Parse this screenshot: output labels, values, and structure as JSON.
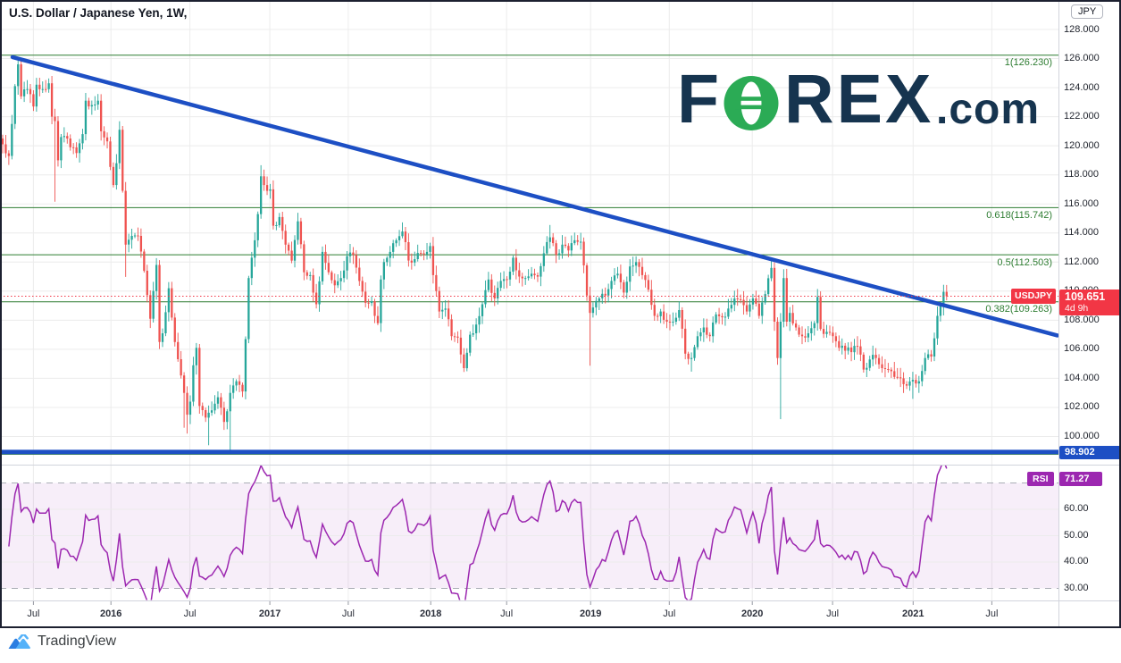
{
  "header": {
    "title": "U.S. Dollar / Japanese Yen, 1W,"
  },
  "price_scale": {
    "currency_badge": "JPY",
    "current": {
      "price": "109.651",
      "countdown": "4d 9h"
    },
    "ray_badge": "98.902"
  },
  "symbol_price_label": "USDJPY",
  "rsi_panel": {
    "label": "RSI",
    "value": "71.27"
  },
  "watermark": {
    "f": "F",
    "rex": "REX",
    "tld": ".com",
    "navy": "#16344f",
    "green": "#2bab55"
  },
  "footer": {
    "brand": "TradingView"
  },
  "colors": {
    "up": "#26a69a",
    "down": "#ef5350",
    "trend": "#1d4fc4",
    "fib": "#2e7d32",
    "grid": "#ececec",
    "price_line": "#f23645",
    "badge_red": "#f23645",
    "badge_blue": "#1d4fc4",
    "rsi": "#9c27b0",
    "band_fill": "#9c27b0",
    "dashed": "#aaadb5",
    "axis_text": "#22262f",
    "tick": "#9598a1",
    "divider": "#d1d4dc"
  },
  "chart_data": {
    "type": "candlestick",
    "symbol": "USD/JPY",
    "timeframe": "1W",
    "title": "U.S. Dollar / Japanese Yen, 1W",
    "last_price": 109.651,
    "last_candle_countdown": "4d 9h",
    "weeks": 308,
    "price_axis": {
      "min": 98.0,
      "max": 128.8,
      "tick_step": 2,
      "ticks": [
        128,
        126,
        124,
        122,
        120,
        118,
        116,
        114,
        112,
        110,
        108,
        106,
        104,
        102,
        100
      ]
    },
    "time_axis": {
      "week0_date": "2015-04-27",
      "labels": [
        {
          "label": "Jul",
          "week": 10.0
        },
        {
          "label": "2016",
          "week": 35.2
        },
        {
          "label": "Jul",
          "week": 60.9
        },
        {
          "label": "2017",
          "week": 86.9
        },
        {
          "label": "Jul",
          "week": 112.4
        },
        {
          "label": "2018",
          "week": 139.2
        },
        {
          "label": "Jul",
          "week": 163.9
        },
        {
          "label": "2019",
          "week": 191.2
        },
        {
          "label": "Jul",
          "week": 216.8
        },
        {
          "label": "2020",
          "week": 243.8
        },
        {
          "label": "Jul",
          "week": 269.9
        },
        {
          "label": "2021",
          "week": 296.1
        },
        {
          "label": "Jul",
          "week": 321.7
        }
      ]
    },
    "weekly_close_keypoints": [
      [
        0,
        120.1
      ],
      [
        2,
        119.3
      ],
      [
        3,
        121.5
      ],
      [
        4,
        124.1
      ],
      [
        5,
        125.6
      ],
      [
        6,
        123.4
      ],
      [
        8,
        123.9
      ],
      [
        10,
        122.7
      ],
      [
        11,
        124.2
      ],
      [
        13,
        123.9
      ],
      [
        15,
        124.3
      ],
      [
        16,
        122.0
      ],
      [
        17,
        121.7
      ],
      [
        18,
        119.0
      ],
      [
        19,
        120.6
      ],
      [
        21,
        120.5
      ],
      [
        22,
        119.9
      ],
      [
        24,
        119.5
      ],
      [
        26,
        120.8
      ],
      [
        27,
        123.1
      ],
      [
        29,
        122.8
      ],
      [
        31,
        123.1
      ],
      [
        32,
        121.0
      ],
      [
        34,
        120.3
      ],
      [
        36,
        117.3
      ],
      [
        37,
        118.8
      ],
      [
        38,
        121.1
      ],
      [
        39,
        116.9
      ],
      [
        40,
        113.2
      ],
      [
        42,
        113.8
      ],
      [
        44,
        113.8
      ],
      [
        46,
        111.4
      ],
      [
        48,
        108.1
      ],
      [
        50,
        111.8
      ],
      [
        51,
        106.5
      ],
      [
        52,
        107.1
      ],
      [
        54,
        110.2
      ],
      [
        56,
        106.5
      ],
      [
        58,
        104.2
      ],
      [
        59,
        103.0
      ],
      [
        60,
        101.5
      ],
      [
        61,
        102.4
      ],
      [
        62,
        104.9
      ],
      [
        63,
        106.1
      ],
      [
        64,
        102.1
      ],
      [
        66,
        101.3
      ],
      [
        68,
        101.8
      ],
      [
        70,
        102.7
      ],
      [
        72,
        101.0
      ],
      [
        74,
        103.0
      ],
      [
        76,
        103.8
      ],
      [
        78,
        103.1
      ],
      [
        79,
        106.7
      ],
      [
        80,
        110.9
      ],
      [
        81,
        112.3
      ],
      [
        82,
        113.5
      ],
      [
        83,
        115.3
      ],
      [
        84,
        117.9
      ],
      [
        85,
        117.3
      ],
      [
        86,
        116.9
      ],
      [
        87,
        117.0
      ],
      [
        88,
        114.5
      ],
      [
        90,
        115.1
      ],
      [
        92,
        113.2
      ],
      [
        94,
        112.1
      ],
      [
        96,
        114.8
      ],
      [
        98,
        111.3
      ],
      [
        100,
        111.1
      ],
      [
        102,
        109.1
      ],
      [
        104,
        112.7
      ],
      [
        106,
        111.3
      ],
      [
        108,
        110.4
      ],
      [
        110,
        110.9
      ],
      [
        112,
        112.4
      ],
      [
        114,
        112.5
      ],
      [
        116,
        110.7
      ],
      [
        118,
        109.2
      ],
      [
        120,
        109.3
      ],
      [
        122,
        107.8
      ],
      [
        123,
        110.8
      ],
      [
        124,
        112.0
      ],
      [
        126,
        112.7
      ],
      [
        128,
        113.5
      ],
      [
        130,
        114.1
      ],
      [
        132,
        112.1
      ],
      [
        134,
        112.2
      ],
      [
        136,
        112.6
      ],
      [
        138,
        112.7
      ],
      [
        139,
        113.1
      ],
      [
        140,
        111.1
      ],
      [
        142,
        108.6
      ],
      [
        144,
        108.8
      ],
      [
        146,
        106.9
      ],
      [
        148,
        106.8
      ],
      [
        150,
        104.7
      ],
      [
        152,
        107.0
      ],
      [
        154,
        107.7
      ],
      [
        156,
        109.1
      ],
      [
        158,
        110.8
      ],
      [
        160,
        109.5
      ],
      [
        162,
        110.7
      ],
      [
        164,
        110.8
      ],
      [
        166,
        112.3
      ],
      [
        168,
        111.0
      ],
      [
        170,
        110.9
      ],
      [
        172,
        111.2
      ],
      [
        174,
        111.0
      ],
      [
        176,
        112.6
      ],
      [
        178,
        113.7
      ],
      [
        180,
        112.5
      ],
      [
        182,
        113.2
      ],
      [
        184,
        112.8
      ],
      [
        186,
        113.5
      ],
      [
        188,
        113.4
      ],
      [
        190,
        109.7
      ],
      [
        191,
        108.5
      ],
      [
        194,
        109.5
      ],
      [
        196,
        109.7
      ],
      [
        198,
        110.7
      ],
      [
        200,
        111.2
      ],
      [
        202,
        109.9
      ],
      [
        204,
        111.7
      ],
      [
        206,
        112.0
      ],
      [
        208,
        111.1
      ],
      [
        210,
        110.1
      ],
      [
        212,
        108.3
      ],
      [
        214,
        108.6
      ],
      [
        216,
        107.9
      ],
      [
        218,
        107.9
      ],
      [
        220,
        108.7
      ],
      [
        222,
        105.7
      ],
      [
        224,
        105.4
      ],
      [
        226,
        106.9
      ],
      [
        228,
        107.5
      ],
      [
        230,
        106.9
      ],
      [
        232,
        108.4
      ],
      [
        234,
        108.2
      ],
      [
        236,
        108.8
      ],
      [
        238,
        109.5
      ],
      [
        240,
        109.4
      ],
      [
        242,
        108.6
      ],
      [
        244,
        109.5
      ],
      [
        246,
        108.3
      ],
      [
        248,
        109.8
      ],
      [
        250,
        111.6
      ],
      [
        251,
        107.9
      ],
      [
        252,
        105.4
      ],
      [
        253,
        107.9
      ],
      [
        254,
        110.9
      ],
      [
        255,
        107.9
      ],
      [
        256,
        108.5
      ],
      [
        258,
        107.5
      ],
      [
        260,
        106.9
      ],
      [
        262,
        107.1
      ],
      [
        264,
        107.8
      ],
      [
        265,
        109.6
      ],
      [
        266,
        107.4
      ],
      [
        268,
        107.2
      ],
      [
        270,
        106.9
      ],
      [
        272,
        106.1
      ],
      [
        274,
        105.9
      ],
      [
        276,
        105.8
      ],
      [
        278,
        106.2
      ],
      [
        280,
        104.6
      ],
      [
        282,
        105.3
      ],
      [
        284,
        105.4
      ],
      [
        286,
        104.7
      ],
      [
        288,
        104.6
      ],
      [
        290,
        104.1
      ],
      [
        292,
        104.0
      ],
      [
        294,
        103.5
      ],
      [
        296,
        103.9
      ],
      [
        298,
        103.8
      ],
      [
        300,
        105.4
      ],
      [
        302,
        105.5
      ],
      [
        304,
        108.3
      ],
      [
        305,
        109.0
      ],
      [
        306,
        109.95
      ],
      [
        307,
        109.651
      ]
    ],
    "wick_low_overrides": {
      "17": 116.15,
      "40": 110.98,
      "59": 100.6,
      "60": 100.2,
      "67": 99.4,
      "74": 98.82,
      "150": 104.56,
      "191": 104.87,
      "224": 104.46,
      "253": 101.19,
      "296": 102.59
    },
    "wick_high_overrides": {
      "5": 125.86,
      "38": 121.69,
      "84": 118.66,
      "130": 114.73,
      "178": 114.55,
      "206": 112.4,
      "250": 112.23,
      "254": 111.51
    },
    "fib_retracement": {
      "levels": [
        {
          "ratio": 1,
          "price": 126.23,
          "label": "1(126.230)"
        },
        {
          "ratio": 0.618,
          "price": 115.742,
          "label": "0.618(115.742)"
        },
        {
          "ratio": 0.5,
          "price": 112.503,
          "label": "0.5(112.503)"
        },
        {
          "ratio": 0.382,
          "price": 109.263,
          "label": "0.382(109.263)"
        },
        {
          "ratio": 0,
          "price": 98.775,
          "label": ""
        }
      ]
    },
    "trendline": {
      "week_start": 3.2,
      "price_start": 126.1,
      "week_end": 343,
      "price_end": 106.95
    },
    "horizontal_ray": {
      "price": 98.902
    },
    "rsi": {
      "period": 14,
      "last_value": 71.27,
      "upper_band": 70,
      "lower_band": 30,
      "scale_ticks": [
        70,
        60,
        50,
        40,
        30
      ]
    }
  }
}
